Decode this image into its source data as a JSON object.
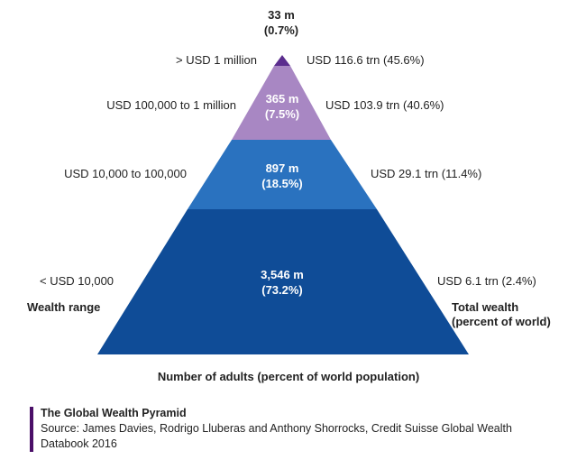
{
  "diagram": {
    "apex": {
      "count": "33 m",
      "pct": "(0.7%)"
    },
    "tiers": [
      {
        "range": "> USD 1 million",
        "wealth": "USD 116.6 trn (45.6%)",
        "count": "",
        "pct": "",
        "color": "#5b2d8e"
      },
      {
        "range": "USD 100,000  to 1 million",
        "wealth": "USD 103.9 trn (40.6%)",
        "count": "365 m",
        "pct": "(7.5%)",
        "color": "#a887c3"
      },
      {
        "range": "USD 10,000  to 100,000",
        "wealth": "USD 29.1 trn (11.4%)",
        "count": "897 m",
        "pct": "(18.5%)",
        "color": "#2a72bf"
      },
      {
        "range": "<  USD 10,000",
        "wealth": "USD 6.1 trn (2.4%)",
        "count": "3,546 m",
        "pct": "(73.2%)",
        "color": "#0f4c97"
      }
    ],
    "left_heading": "Wealth range",
    "right_heading_1": "Total wealth",
    "right_heading_2": "(percent of world)",
    "bottom_label": "Number of adults (percent of world population)"
  },
  "footer": {
    "title": "The Global Wealth Pyramid",
    "source": "Source: James Davies, Rodrigo Lluberas and Anthony Shorrocks, Credit Suisse Global Wealth Databook 2016",
    "bar_color": "#4b0f68"
  }
}
